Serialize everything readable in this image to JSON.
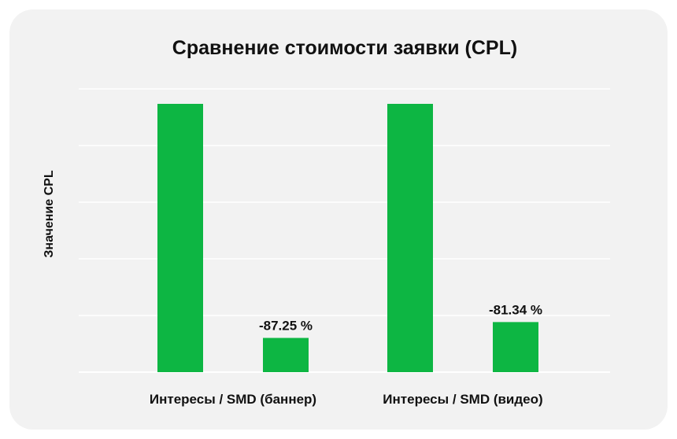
{
  "chart_data": {
    "type": "bar",
    "title": "Сравнение стоимости заявки (CPL)",
    "ylabel": "Значение CPL",
    "xlabel": "",
    "groups": [
      {
        "label": "Интересы / SMD (баннер)",
        "values": [
          100,
          12.75
        ],
        "data_labels": [
          "",
          "-87.25 %"
        ]
      },
      {
        "label": "Интересы / SMD (видео)",
        "values": [
          100,
          18.66
        ],
        "data_labels": [
          "",
          "-81.34 %"
        ]
      }
    ],
    "ylim": [
      0,
      100
    ],
    "grid": true,
    "y_tick_labels_visible": false,
    "colors": {
      "bar": "#0db643",
      "grid": "#ffffff",
      "background": "#f2f2f2"
    }
  }
}
